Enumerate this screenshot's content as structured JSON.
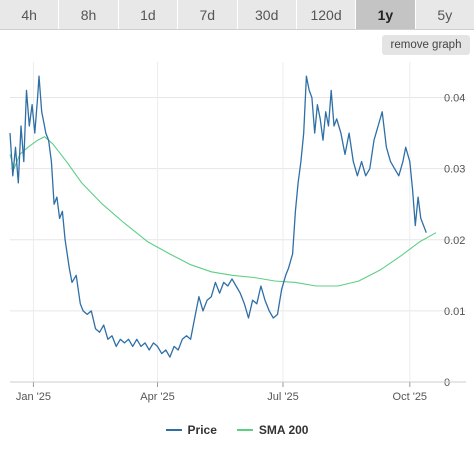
{
  "tabs": [
    {
      "label": "4h",
      "active": false
    },
    {
      "label": "8h",
      "active": false
    },
    {
      "label": "1d",
      "active": false
    },
    {
      "label": "7d",
      "active": false
    },
    {
      "label": "30d",
      "active": false
    },
    {
      "label": "120d",
      "active": false
    },
    {
      "label": "1y",
      "active": true
    },
    {
      "label": "5y",
      "active": false
    }
  ],
  "remove_graph_label": "remove graph",
  "chart_data": {
    "type": "line",
    "x_ticks": [
      "Jan '25",
      "Apr '25",
      "Jul '25",
      "Oct '25"
    ],
    "x_tick_dates": [
      "2025-01-01",
      "2025-04-01",
      "2025-07-01",
      "2025-10-01"
    ],
    "xlim": [
      "2024-12-15",
      "2025-10-20"
    ],
    "y_ticks": [
      "0",
      "0.01",
      "0.02",
      "0.03",
      "0.04"
    ],
    "ylim": [
      0,
      0.045
    ],
    "y_axis_position": "right",
    "grid": true,
    "legend_position": "bottom-center",
    "series": [
      {
        "name": "Price",
        "color": "#2f6fa6",
        "points": [
          [
            "2024-12-15",
            0.035
          ],
          [
            "2024-12-17",
            0.029
          ],
          [
            "2024-12-19",
            0.033
          ],
          [
            "2024-12-21",
            0.028
          ],
          [
            "2024-12-23",
            0.036
          ],
          [
            "2024-12-25",
            0.031
          ],
          [
            "2024-12-27",
            0.041
          ],
          [
            "2024-12-29",
            0.036
          ],
          [
            "2024-12-31",
            0.039
          ],
          [
            "2025-01-02",
            0.035
          ],
          [
            "2025-01-04",
            0.04
          ],
          [
            "2025-01-05",
            0.043
          ],
          [
            "2025-01-07",
            0.038
          ],
          [
            "2025-01-09",
            0.036
          ],
          [
            "2025-01-10",
            0.035
          ],
          [
            "2025-01-12",
            0.034
          ],
          [
            "2025-01-14",
            0.031
          ],
          [
            "2025-01-16",
            0.025
          ],
          [
            "2025-01-18",
            0.026
          ],
          [
            "2025-01-20",
            0.023
          ],
          [
            "2025-01-22",
            0.024
          ],
          [
            "2025-01-24",
            0.02
          ],
          [
            "2025-01-27",
            0.016
          ],
          [
            "2025-01-29",
            0.014
          ],
          [
            "2025-02-01",
            0.015
          ],
          [
            "2025-02-04",
            0.011
          ],
          [
            "2025-02-06",
            0.01
          ],
          [
            "2025-02-09",
            0.0095
          ],
          [
            "2025-02-12",
            0.01
          ],
          [
            "2025-02-15",
            0.0075
          ],
          [
            "2025-02-18",
            0.007
          ],
          [
            "2025-02-21",
            0.008
          ],
          [
            "2025-02-24",
            0.006
          ],
          [
            "2025-02-27",
            0.0065
          ],
          [
            "2025-03-02",
            0.005
          ],
          [
            "2025-03-05",
            0.006
          ],
          [
            "2025-03-08",
            0.0055
          ],
          [
            "2025-03-11",
            0.006
          ],
          [
            "2025-03-14",
            0.005
          ],
          [
            "2025-03-17",
            0.006
          ],
          [
            "2025-03-20",
            0.005
          ],
          [
            "2025-03-23",
            0.0055
          ],
          [
            "2025-03-26",
            0.0045
          ],
          [
            "2025-03-29",
            0.0055
          ],
          [
            "2025-04-01",
            0.005
          ],
          [
            "2025-04-04",
            0.004
          ],
          [
            "2025-04-07",
            0.0045
          ],
          [
            "2025-04-10",
            0.0035
          ],
          [
            "2025-04-13",
            0.005
          ],
          [
            "2025-04-16",
            0.0045
          ],
          [
            "2025-04-19",
            0.006
          ],
          [
            "2025-04-22",
            0.0065
          ],
          [
            "2025-04-25",
            0.006
          ],
          [
            "2025-04-28",
            0.009
          ],
          [
            "2025-05-01",
            0.012
          ],
          [
            "2025-05-04",
            0.01
          ],
          [
            "2025-05-07",
            0.0115
          ],
          [
            "2025-05-10",
            0.012
          ],
          [
            "2025-05-13",
            0.014
          ],
          [
            "2025-05-16",
            0.0125
          ],
          [
            "2025-05-19",
            0.014
          ],
          [
            "2025-05-22",
            0.0135
          ],
          [
            "2025-05-25",
            0.0145
          ],
          [
            "2025-05-28",
            0.0135
          ],
          [
            "2025-05-31",
            0.0125
          ],
          [
            "2025-06-03",
            0.011
          ],
          [
            "2025-06-06",
            0.009
          ],
          [
            "2025-06-09",
            0.0115
          ],
          [
            "2025-06-12",
            0.011
          ],
          [
            "2025-06-15",
            0.0135
          ],
          [
            "2025-06-18",
            0.0115
          ],
          [
            "2025-06-21",
            0.01
          ],
          [
            "2025-06-24",
            0.009
          ],
          [
            "2025-06-27",
            0.0095
          ],
          [
            "2025-06-30",
            0.013
          ],
          [
            "2025-07-03",
            0.015
          ],
          [
            "2025-07-05",
            0.016
          ],
          [
            "2025-07-08",
            0.018
          ],
          [
            "2025-07-10",
            0.024
          ],
          [
            "2025-07-12",
            0.028
          ],
          [
            "2025-07-14",
            0.031
          ],
          [
            "2025-07-16",
            0.035
          ],
          [
            "2025-07-18",
            0.043
          ],
          [
            "2025-07-20",
            0.041
          ],
          [
            "2025-07-22",
            0.04
          ],
          [
            "2025-07-24",
            0.035
          ],
          [
            "2025-07-26",
            0.039
          ],
          [
            "2025-07-28",
            0.037
          ],
          [
            "2025-07-30",
            0.034
          ],
          [
            "2025-08-01",
            0.038
          ],
          [
            "2025-08-03",
            0.036
          ],
          [
            "2025-08-05",
            0.041
          ],
          [
            "2025-08-07",
            0.036
          ],
          [
            "2025-08-09",
            0.037
          ],
          [
            "2025-08-12",
            0.035
          ],
          [
            "2025-08-15",
            0.032
          ],
          [
            "2025-08-18",
            0.035
          ],
          [
            "2025-08-21",
            0.031
          ],
          [
            "2025-08-24",
            0.029
          ],
          [
            "2025-08-27",
            0.031
          ],
          [
            "2025-08-30",
            0.029
          ],
          [
            "2025-09-02",
            0.03
          ],
          [
            "2025-09-05",
            0.034
          ],
          [
            "2025-09-08",
            0.036
          ],
          [
            "2025-09-11",
            0.038
          ],
          [
            "2025-09-14",
            0.033
          ],
          [
            "2025-09-17",
            0.031
          ],
          [
            "2025-09-20",
            0.03
          ],
          [
            "2025-09-23",
            0.029
          ],
          [
            "2025-09-26",
            0.031
          ],
          [
            "2025-09-28",
            0.033
          ],
          [
            "2025-10-01",
            0.031
          ],
          [
            "2025-10-03",
            0.027
          ],
          [
            "2025-10-05",
            0.022
          ],
          [
            "2025-10-07",
            0.026
          ],
          [
            "2025-10-09",
            0.023
          ],
          [
            "2025-10-11",
            0.022
          ],
          [
            "2025-10-13",
            0.021
          ]
        ]
      },
      {
        "name": "SMA 200",
        "color": "#5ccf84",
        "points": [
          [
            "2024-12-15",
            0.032
          ],
          [
            "2024-12-18",
            0.03
          ],
          [
            "2024-12-22",
            0.032
          ],
          [
            "2024-12-28",
            0.033
          ],
          [
            "2025-01-04",
            0.034
          ],
          [
            "2025-01-09",
            0.0345
          ],
          [
            "2025-01-15",
            0.0335
          ],
          [
            "2025-01-25",
            0.031
          ],
          [
            "2025-02-05",
            0.028
          ],
          [
            "2025-02-20",
            0.025
          ],
          [
            "2025-03-07",
            0.0225
          ],
          [
            "2025-03-25",
            0.0197
          ],
          [
            "2025-04-10",
            0.018
          ],
          [
            "2025-04-25",
            0.0165
          ],
          [
            "2025-05-10",
            0.0155
          ],
          [
            "2025-05-25",
            0.015
          ],
          [
            "2025-06-10",
            0.0147
          ],
          [
            "2025-06-25",
            0.0142
          ],
          [
            "2025-07-10",
            0.014
          ],
          [
            "2025-07-25",
            0.0135
          ],
          [
            "2025-08-10",
            0.0135
          ],
          [
            "2025-08-25",
            0.0142
          ],
          [
            "2025-09-10",
            0.0158
          ],
          [
            "2025-09-25",
            0.0178
          ],
          [
            "2025-10-08",
            0.0197
          ],
          [
            "2025-10-20",
            0.021
          ]
        ]
      }
    ]
  }
}
